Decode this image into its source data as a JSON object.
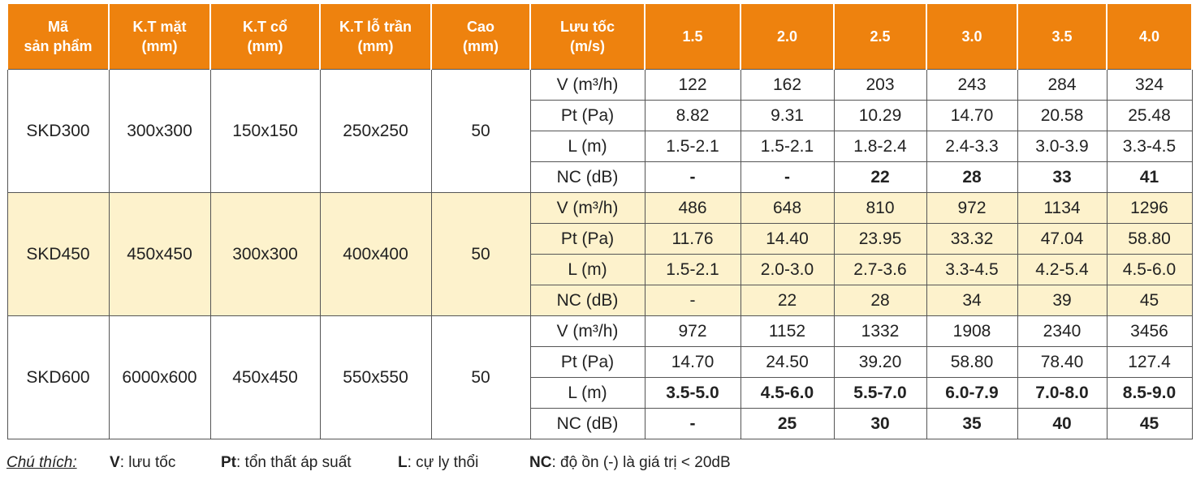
{
  "header": {
    "columns": [
      [
        "Mã",
        "sản phẩm"
      ],
      [
        "K.T mặt",
        "(mm)"
      ],
      [
        "K.T cổ",
        "(mm)"
      ],
      [
        "K.T lỗ trần",
        "(mm)"
      ],
      [
        "Cao",
        "(mm)"
      ],
      [
        "Lưu tốc",
        "(m/s)"
      ]
    ],
    "velocities": [
      "1.5",
      "2.0",
      "2.5",
      "3.0",
      "3.5",
      "4.0"
    ]
  },
  "products": [
    {
      "code": "SKD300",
      "face": "300x300",
      "neck": "150x150",
      "hole": "250x250",
      "height": "50",
      "params": [
        {
          "label": "V (m³/h)",
          "values": [
            "122",
            "162",
            "203",
            "243",
            "284",
            "324"
          ]
        },
        {
          "label": "Pt (Pa)",
          "values": [
            "8.82",
            "9.31",
            "10.29",
            "14.70",
            "20.58",
            "25.48"
          ]
        },
        {
          "label": "L (m)",
          "values": [
            "1.5-2.1",
            "1.5-2.1",
            "1.8-2.4",
            "2.4-3.3",
            "3.0-3.9",
            "3.3-4.5"
          ]
        },
        {
          "label": "NC (dB)",
          "values": [
            "-",
            "-",
            "22",
            "28",
            "33",
            "41"
          ]
        }
      ]
    },
    {
      "code": "SKD450",
      "face": "450x450",
      "neck": "300x300",
      "hole": "400x400",
      "height": "50",
      "params": [
        {
          "label": "V (m³/h)",
          "values": [
            "486",
            "648",
            "810",
            "972",
            "1134",
            "1296"
          ]
        },
        {
          "label": "Pt (Pa)",
          "values": [
            "11.76",
            "14.40",
            "23.95",
            "33.32",
            "47.04",
            "58.80"
          ]
        },
        {
          "label": "L (m)",
          "values": [
            "1.5-2.1",
            "2.0-3.0",
            "2.7-3.6",
            "3.3-4.5",
            "4.2-5.4",
            "4.5-6.0"
          ]
        },
        {
          "label": "NC (dB)",
          "values": [
            "-",
            "22",
            "28",
            "34",
            "39",
            "45"
          ]
        }
      ]
    },
    {
      "code": "SKD600",
      "face": "6000x600",
      "neck": "450x450",
      "hole": "550x550",
      "height": "50",
      "params": [
        {
          "label": "V (m³/h)",
          "values": [
            "972",
            "1152",
            "1332",
            "1908",
            "2340",
            "3456"
          ]
        },
        {
          "label": "Pt (Pa)",
          "values": [
            "14.70",
            "24.50",
            "39.20",
            "58.80",
            "78.40",
            "127.4"
          ]
        },
        {
          "label": "L (m)",
          "values": [
            "3.5-5.0",
            "4.5-6.0",
            "5.5-7.0",
            "6.0-7.9",
            "7.0-8.0",
            "8.5-9.0"
          ]
        },
        {
          "label": "NC (dB)",
          "values": [
            "-",
            "25",
            "30",
            "35",
            "40",
            "45"
          ]
        }
      ]
    }
  ],
  "footnote": {
    "title": "Chú thích:",
    "items": [
      {
        "key": "V",
        "text": ": lưu tốc"
      },
      {
        "key": "Pt",
        "text": ": tổn thất áp suất"
      },
      {
        "key": "L",
        "text": ": cự ly thổi"
      },
      {
        "key": "NC",
        "text": ": độ ồn (-) là giá trị < 20dB"
      }
    ]
  }
}
